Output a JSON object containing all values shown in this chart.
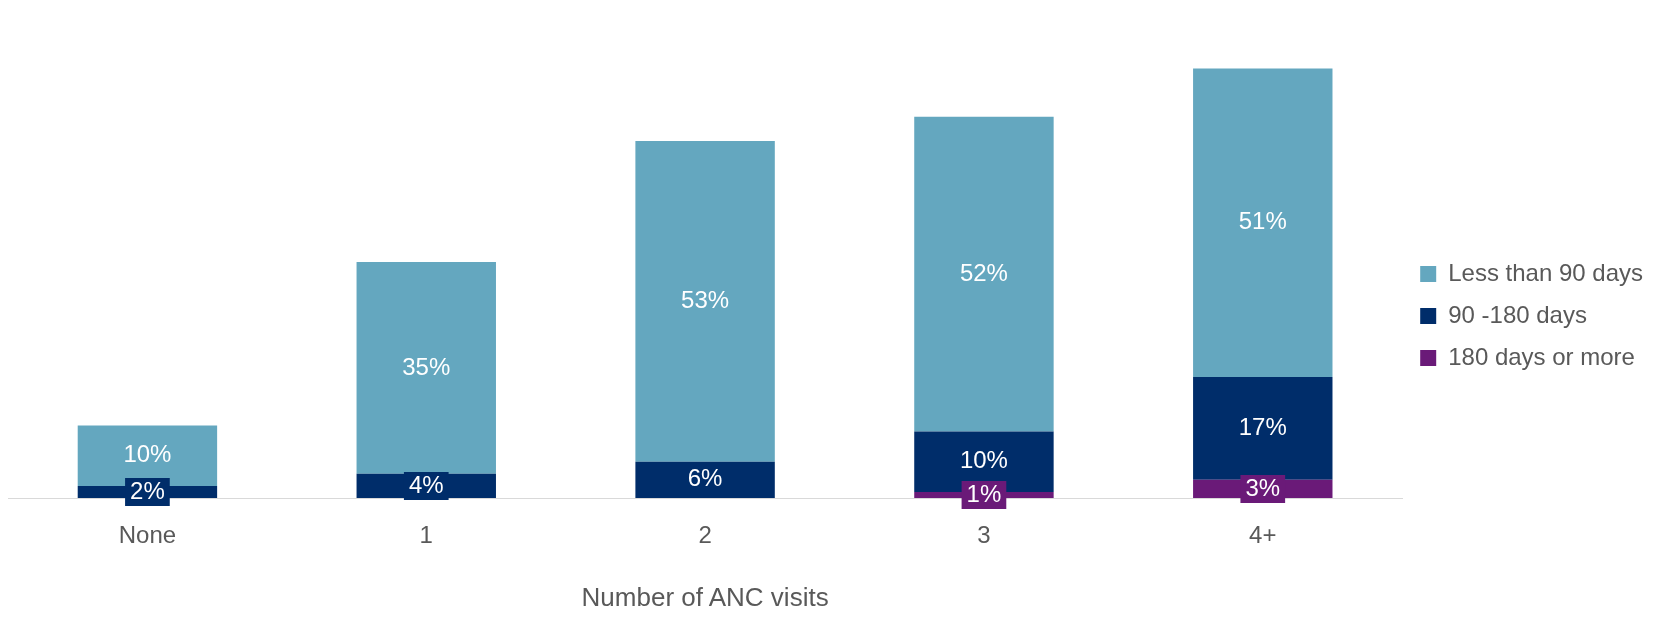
{
  "chart_data": {
    "type": "bar",
    "stacked": true,
    "xlabel": "Number of ANC visits",
    "categories": [
      "None",
      "1",
      "2",
      "3",
      "4+"
    ],
    "series": [
      {
        "name": "180 days or more",
        "color": "#6a1a78",
        "values": [
          null,
          null,
          null,
          1,
          3
        ],
        "value_labels": [
          null,
          null,
          null,
          "1%",
          "3%"
        ]
      },
      {
        "name": "90 -180 days",
        "color": "#002d6a",
        "values": [
          2,
          4,
          6,
          10,
          17
        ],
        "value_labels": [
          "2%",
          "4%",
          "6%",
          "10%",
          "17%"
        ]
      },
      {
        "name": "Less than 90 days",
        "color": "#64a7bf",
        "values": [
          10,
          35,
          53,
          52,
          51
        ],
        "value_labels": [
          "10%",
          "35%",
          "53%",
          "52%",
          "51%"
        ]
      }
    ],
    "legend": "right",
    "grid": false,
    "tick_labels": "x"
  }
}
